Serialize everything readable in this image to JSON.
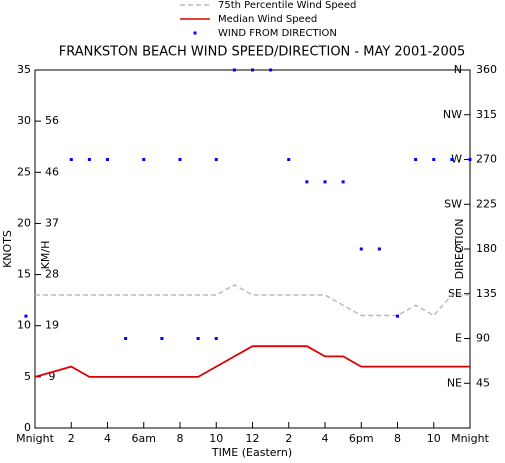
{
  "chart_data": {
    "type": "line",
    "title": "FRANKSTON BEACH WIND SPEED/DIRECTION - MAY 2001-2005",
    "x_label": "TIME (Eastern)",
    "y_label": "KNOTS",
    "y_label_inner": "KM/H",
    "y2_label": "DIRECTION",
    "x": [
      0,
      1,
      2,
      3,
      4,
      5,
      6,
      7,
      8,
      9,
      10,
      11,
      12,
      13,
      14,
      15,
      16,
      17,
      18,
      19,
      20,
      21,
      22,
      23,
      24
    ],
    "series": [
      {
        "name": "75th Percentile Wind Speed",
        "color": "#bbbbbb",
        "dash": true,
        "values": [
          13,
          13,
          13,
          13,
          13,
          13,
          13,
          13,
          13,
          13,
          13,
          14,
          13,
          13,
          13,
          13,
          13,
          12,
          11,
          11,
          11,
          12,
          11,
          13,
          13
        ]
      },
      {
        "name": "Median Wind Speed",
        "color": "#dd0000",
        "dash": false,
        "values": [
          5,
          5.5,
          6,
          5,
          5,
          5,
          5,
          5,
          5,
          5,
          6,
          7,
          8,
          8,
          8,
          8,
          7,
          7,
          6,
          6,
          6,
          6,
          6,
          6,
          6
        ]
      }
    ],
    "direction": {
      "name": "WIND FROM DIRECTION",
      "color": "#0000ff",
      "axis": "y2",
      "x": [
        -0.5,
        2,
        3,
        4,
        5,
        6,
        7,
        8,
        9,
        10,
        10,
        11,
        12,
        13,
        14,
        15,
        16,
        17,
        18,
        19,
        20,
        21,
        22,
        23,
        24
      ],
      "values": [
        112.5,
        270,
        270,
        270,
        90,
        270,
        90,
        270,
        90,
        270,
        90,
        360,
        360,
        360,
        270,
        247.5,
        247.5,
        247.5,
        180,
        180,
        112.5,
        270,
        270,
        270,
        270
      ]
    },
    "xlim": [
      0,
      24
    ],
    "xticks": [
      {
        "value": 0,
        "label": "Mnight"
      },
      2,
      4,
      {
        "value": 6,
        "label": "6am"
      },
      8,
      10,
      12,
      {
        "value": 14,
        "label": "2"
      },
      {
        "value": 16,
        "label": "4"
      },
      {
        "value": 18,
        "label": "6pm"
      },
      {
        "value": 20,
        "label": "8"
      },
      {
        "value": 22,
        "label": "10"
      },
      {
        "value": 24,
        "label": "Mnight"
      }
    ],
    "ylim": [
      0,
      35
    ],
    "yticks": [
      0,
      5,
      10,
      15,
      20,
      25,
      30,
      35
    ],
    "kmh_ticks": [
      {
        "value": 5,
        "label": "9"
      },
      {
        "value": 10,
        "label": "19"
      },
      {
        "value": 15,
        "label": "28"
      },
      {
        "value": 20,
        "label": "37"
      },
      {
        "value": 25,
        "label": "46"
      },
      {
        "value": 30,
        "label": "56"
      }
    ],
    "y2lim": [
      0,
      360
    ],
    "y2ticks": [
      45,
      90,
      135,
      180,
      225,
      270,
      315,
      360
    ],
    "y2tick_names": [
      "NE",
      "E",
      "SE",
      "S",
      "SW",
      "W",
      "NW",
      "N"
    ]
  }
}
